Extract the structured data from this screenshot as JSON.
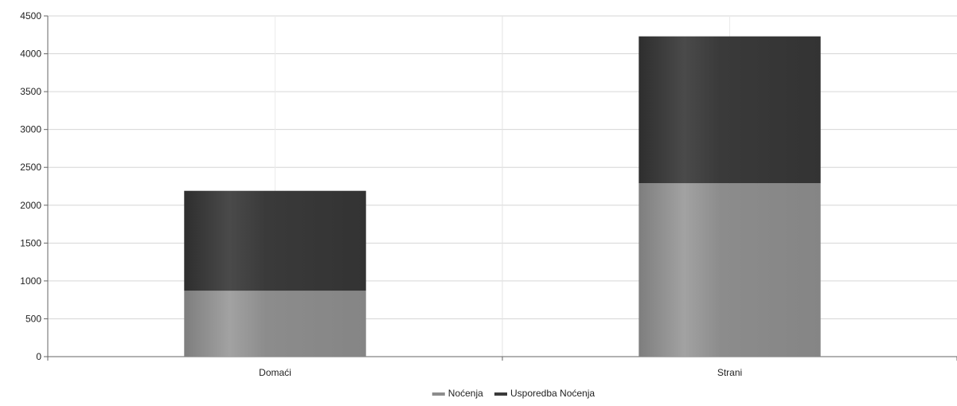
{
  "chart_data": {
    "type": "bar",
    "stacked": true,
    "title": "",
    "xlabel": "",
    "ylabel": "",
    "categories": [
      "Domaći",
      "Strani"
    ],
    "series": [
      {
        "name": "Noćenja",
        "values": [
          870,
          2290
        ],
        "color": "#8c8c8c"
      },
      {
        "name": "Usporedba Noćenja",
        "values": [
          1320,
          1940
        ],
        "color": "#3a3a3a"
      }
    ],
    "ylim": [
      0,
      4500
    ],
    "yticks": [
      0,
      500,
      1000,
      1500,
      2000,
      2500,
      3000,
      3500,
      4000,
      4500
    ],
    "grid": true,
    "legend_position": "bottom-center"
  }
}
